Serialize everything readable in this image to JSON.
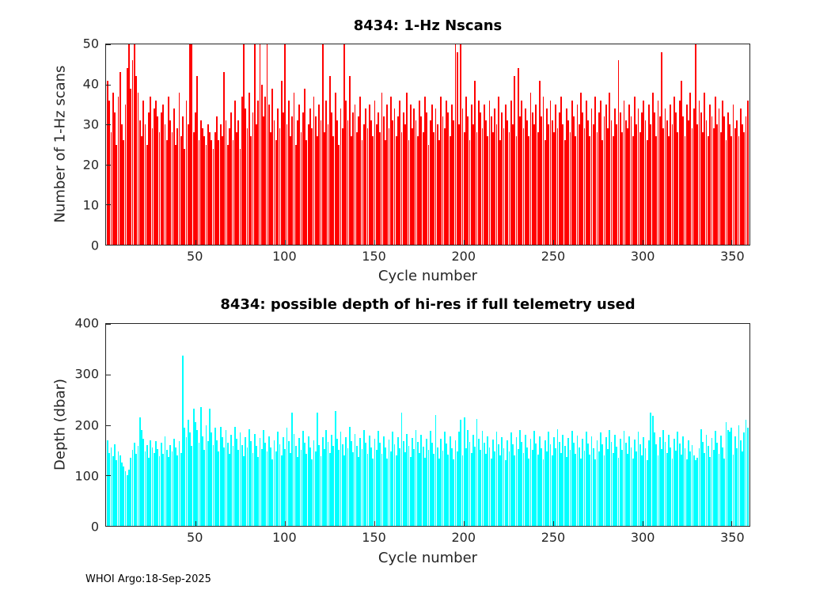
{
  "figure": {
    "background": "#ffffff",
    "footer": "WHOI Argo:18-Sep-2025"
  },
  "chart_data": [
    {
      "type": "bar",
      "title": "8434: 1-Hz Nscans",
      "xlabel": "Cycle number",
      "ylabel": "Number of 1-Hz scans",
      "bar_color": "#ff0000",
      "grid": false,
      "legend": false,
      "xlim": [
        0,
        360
      ],
      "ylim": [
        0,
        50
      ],
      "xticks": [
        50,
        100,
        150,
        200,
        250,
        300,
        350
      ],
      "yticks": [
        0,
        10,
        20,
        30,
        40,
        50
      ],
      "x_start_cycle": 1,
      "values": [
        41,
        36,
        28,
        38,
        33,
        25,
        37,
        43,
        30,
        26,
        35,
        44,
        50,
        39,
        46,
        50,
        42,
        38,
        31,
        27,
        36,
        30,
        25,
        33,
        37,
        29,
        34,
        36,
        32,
        28,
        33,
        35,
        30,
        26,
        37,
        31,
        28,
        34,
        25,
        29,
        38,
        27,
        32,
        24,
        36,
        30,
        50,
        50,
        28,
        33,
        42,
        26,
        31,
        29,
        27,
        25,
        30,
        28,
        26,
        24,
        28,
        32,
        26,
        30,
        27,
        43,
        31,
        25,
        29,
        33,
        26,
        36,
        28,
        31,
        24,
        37,
        50,
        34,
        29,
        38,
        27,
        33,
        50,
        30,
        36,
        50,
        40,
        32,
        37,
        50,
        35,
        28,
        39,
        31,
        26,
        34,
        29,
        41,
        33,
        50,
        30,
        36,
        27,
        32,
        38,
        25,
        31,
        35,
        28,
        33,
        39,
        26,
        30,
        34,
        29,
        37,
        32,
        27,
        35,
        31,
        50,
        28,
        36,
        30,
        42,
        33,
        27,
        38,
        31,
        25,
        34,
        29,
        50,
        36,
        31,
        42,
        27,
        33,
        35,
        28,
        32,
        37,
        26,
        30,
        34,
        29,
        35,
        31,
        27,
        36,
        30,
        33,
        28,
        38,
        32,
        26,
        35,
        29,
        37,
        31,
        34,
        27,
        32,
        36,
        28,
        33,
        30,
        38,
        26,
        35,
        29,
        34,
        31,
        27,
        36,
        32,
        28,
        37,
        33,
        25,
        31,
        35,
        28,
        34,
        30,
        26,
        37,
        32,
        29,
        36,
        33,
        27,
        35,
        31,
        50,
        48,
        30,
        50,
        34,
        28,
        37,
        32,
        26,
        35,
        30,
        41,
        28,
        36,
        33,
        29,
        35,
        31,
        27,
        36,
        32,
        28,
        34,
        30,
        37,
        26,
        33,
        29,
        35,
        31,
        28,
        36,
        30,
        42,
        27,
        44,
        32,
        36,
        29,
        34,
        31,
        27,
        38,
        33,
        30,
        35,
        28,
        41,
        32,
        37,
        26,
        34,
        30,
        36,
        31,
        28,
        35,
        29,
        33,
        37,
        30,
        26,
        34,
        31,
        28,
        36,
        32,
        27,
        35,
        30,
        38,
        33,
        29,
        36,
        31,
        27,
        34,
        30,
        37,
        28,
        33,
        36,
        26,
        32,
        35,
        29,
        38,
        31,
        27,
        34,
        30,
        46,
        33,
        28,
        36,
        31,
        29,
        35,
        32,
        27,
        37,
        30,
        34,
        28,
        33,
        36,
        31,
        26,
        35,
        30,
        38,
        33,
        27,
        36,
        32,
        48,
        29,
        34,
        31,
        27,
        35,
        30,
        37,
        33,
        28,
        36,
        41,
        32,
        27,
        35,
        31,
        38,
        29,
        34,
        50,
        30,
        36,
        33,
        28,
        38,
        31,
        27,
        35,
        32,
        29,
        37,
        30,
        34,
        28,
        36,
        32,
        26,
        33,
        30,
        27,
        35,
        29,
        31,
        27,
        34,
        30,
        28,
        32,
        36
      ]
    },
    {
      "type": "bar",
      "title": "8434: possible depth of hi-res if full telemetry used",
      "xlabel": "Cycle number",
      "ylabel": "Depth (dbar)",
      "bar_color": "#00ffff",
      "grid": false,
      "legend": false,
      "xlim": [
        0,
        360
      ],
      "ylim": [
        0,
        400
      ],
      "xticks": [
        50,
        100,
        150,
        200,
        250,
        300,
        350
      ],
      "yticks": [
        0,
        100,
        200,
        300,
        400
      ],
      "x_start_cycle": 1,
      "values": [
        170,
        145,
        155,
        138,
        162,
        130,
        148,
        140,
        125,
        118,
        108,
        100,
        112,
        135,
        150,
        165,
        142,
        158,
        215,
        190,
        172,
        148,
        160,
        135,
        170,
        155,
        145,
        168,
        152,
        138,
        165,
        142,
        178,
        150,
        136,
        160,
        148,
        172,
        155,
        140,
        168,
        145,
        338,
        195,
        175,
        210,
        185,
        158,
        232,
        205,
        190,
        165,
        235,
        178,
        150,
        200,
        168,
        232,
        185,
        160,
        195,
        170,
        148,
        196,
        175,
        155,
        190,
        165,
        142,
        180,
        158,
        196,
        172,
        150,
        185,
        160,
        138,
        176,
        155,
        192,
        168,
        145,
        182,
        158,
        136,
        174,
        152,
        190,
        165,
        148,
        178,
        155,
        132,
        170,
        148,
        186,
        162,
        140,
        175,
        152,
        195,
        168,
        145,
        225,
        182,
        158,
        136,
        174,
        150,
        188,
        164,
        142,
        178,
        155,
        132,
        170,
        148,
        225,
        160,
        138,
        175,
        152,
        190,
        166,
        144,
        180,
        158,
        228,
        172,
        150,
        186,
        162,
        140,
        176,
        154,
        196,
        168,
        146,
        182,
        158,
        136,
        174,
        152,
        190,
        165,
        143,
        179,
        156,
        134,
        172,
        150,
        188,
        164,
        142,
        178,
        155,
        133,
        171,
        148,
        186,
        162,
        140,
        176,
        154,
        225,
        168,
        146,
        182,
        158,
        136,
        174,
        152,
        190,
        166,
        144,
        180,
        157,
        135,
        173,
        150,
        188,
        164,
        142,
        220,
        156,
        134,
        172,
        149,
        187,
        163,
        141,
        177,
        154,
        132,
        170,
        148,
        186,
        210,
        140,
        215,
        154,
        190,
        166,
        144,
        180,
        157,
        212,
        173,
        150,
        188,
        164,
        142,
        178,
        155,
        133,
        171,
        148,
        186,
        162,
        140,
        176,
        153,
        131,
        169,
        147,
        185,
        161,
        139,
        175,
        152,
        190,
        166,
        144,
        180,
        156,
        134,
        172,
        150,
        188,
        163,
        141,
        177,
        154,
        132,
        170,
        148,
        186,
        162,
        140,
        176,
        153,
        191,
        167,
        145,
        181,
        158,
        136,
        174,
        151,
        189,
        165,
        143,
        179,
        156,
        134,
        172,
        149,
        187,
        163,
        141,
        177,
        154,
        132,
        170,
        147,
        185,
        161,
        139,
        175,
        152,
        190,
        166,
        144,
        180,
        157,
        135,
        173,
        150,
        188,
        164,
        142,
        178,
        155,
        133,
        171,
        148,
        186,
        162,
        140,
        176,
        153,
        131,
        169,
        225,
        218,
        185,
        161,
        139,
        175,
        152,
        190,
        166,
        144,
        180,
        156,
        134,
        172,
        149,
        187,
        163,
        141,
        177,
        154,
        132,
        170,
        147,
        160,
        140,
        130,
        135,
        153,
        191,
        167,
        145,
        181,
        158,
        136,
        174,
        151,
        189,
        165,
        143,
        179,
        156,
        134,
        205,
        190,
        187,
        195,
        141,
        177,
        154,
        200,
        170,
        147,
        185,
        210,
        195
      ]
    }
  ]
}
